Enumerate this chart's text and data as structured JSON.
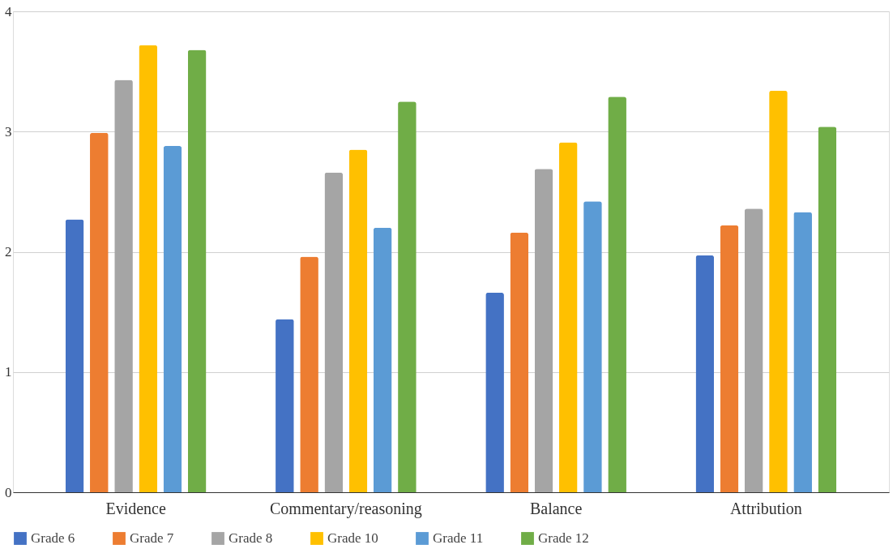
{
  "chart_data": {
    "type": "bar",
    "categories": [
      "Evidence",
      "Commentary/reasoning",
      "Balance",
      "Attribution"
    ],
    "series": [
      {
        "name": "Grade 6",
        "color": "#4472c4",
        "values": [
          2.27,
          1.44,
          1.66,
          1.97
        ]
      },
      {
        "name": "Grade 7",
        "color": "#ed7d31",
        "values": [
          2.99,
          1.96,
          2.16,
          2.22
        ]
      },
      {
        "name": "Grade 8",
        "color": "#a5a5a5",
        "values": [
          3.43,
          2.66,
          2.69,
          2.36
        ]
      },
      {
        "name": "Grade 10",
        "color": "#ffc000",
        "values": [
          3.72,
          2.85,
          2.91,
          3.34
        ]
      },
      {
        "name": "Grade 11",
        "color": "#5b9bd5",
        "values": [
          2.88,
          2.2,
          2.42,
          2.33
        ]
      },
      {
        "name": "Grade 12",
        "color": "#70ad47",
        "values": [
          3.68,
          3.25,
          3.29,
          3.04
        ]
      }
    ],
    "ylim": [
      0,
      4
    ],
    "yticks": [
      0,
      1,
      2,
      3,
      4
    ],
    "grid": "y",
    "legend": "bottom"
  }
}
